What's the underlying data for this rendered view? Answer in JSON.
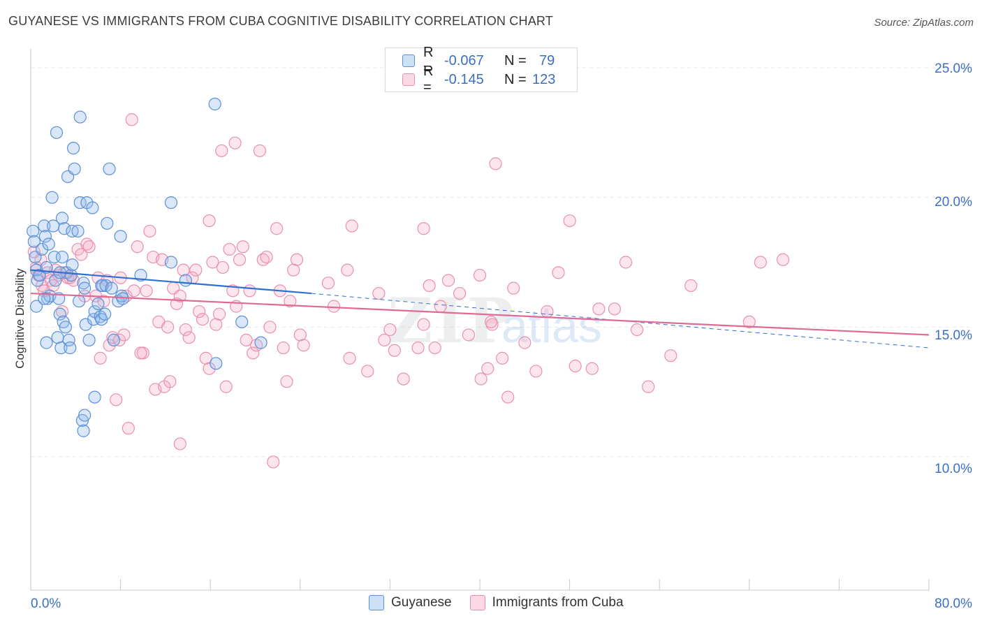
{
  "header": {
    "title": "GUYANESE VS IMMIGRANTS FROM CUBA COGNITIVE DISABILITY CORRELATION CHART",
    "source": "Source: ZipAtlas.com"
  },
  "legend": {
    "rows": [
      {
        "r_label": "R =",
        "r_value": "-0.067",
        "n_label": "N =",
        "n_value": "79"
      },
      {
        "r_label": "R =",
        "r_value": "-0.145",
        "n_label": "N =",
        "n_value": "123"
      }
    ]
  },
  "colors": {
    "blue_fill": "rgba(147,186,236,0.35)",
    "blue_stroke": "#5b8fd6",
    "blue_line": "#2f6fd0",
    "pink_fill": "rgba(244,170,196,0.30)",
    "pink_stroke": "#e890b0",
    "pink_line": "#e06a96",
    "tick_text": "#3a6fc4"
  },
  "chart_data": {
    "type": "scatter",
    "title": "GUYANESE VS IMMIGRANTS FROM CUBA COGNITIVE DISABILITY CORRELATION CHART",
    "xlabel": "",
    "ylabel": "Cognitive Disability",
    "xlim": [
      0,
      80
    ],
    "ylim": [
      5,
      25.9
    ],
    "x_tick_labels": [
      "0.0%",
      "80.0%"
    ],
    "y_ticks": [
      10,
      15,
      20,
      25
    ],
    "y_tick_labels": [
      "10.0%",
      "15.0%",
      "20.0%",
      "25.0%"
    ],
    "watermark": "ZIPatlas",
    "series": [
      {
        "name": "Guyanese",
        "r": -0.067,
        "n": 79,
        "trend": {
          "x0": 0,
          "y0": 17.2,
          "x1": 25,
          "y1": 16.3,
          "dash_to_x": 80,
          "dash_to_y": 14.2
        },
        "points": [
          [
            0.2,
            18.7
          ],
          [
            0.3,
            18.3
          ],
          [
            0.4,
            17.7
          ],
          [
            0.5,
            17.2
          ],
          [
            0.6,
            16.8
          ],
          [
            0.8,
            17.0
          ],
          [
            0.5,
            15.8
          ],
          [
            1.0,
            18.0
          ],
          [
            1.2,
            18.9
          ],
          [
            1.3,
            18.5
          ],
          [
            1.4,
            17.3
          ],
          [
            1.5,
            16.1
          ],
          [
            1.6,
            18.2
          ],
          [
            1.7,
            16.2
          ],
          [
            1.9,
            20.0
          ],
          [
            2.0,
            18.9
          ],
          [
            2.1,
            17.7
          ],
          [
            1.4,
            14.4
          ],
          [
            2.2,
            16.8
          ],
          [
            2.3,
            22.5
          ],
          [
            2.4,
            14.6
          ],
          [
            2.5,
            16.1
          ],
          [
            2.6,
            15.5
          ],
          [
            2.7,
            14.2
          ],
          [
            2.8,
            19.2
          ],
          [
            2.8,
            17.7
          ],
          [
            2.9,
            15.2
          ],
          [
            3.0,
            18.8
          ],
          [
            3.1,
            15.0
          ],
          [
            3.2,
            17.1
          ],
          [
            3.3,
            20.8
          ],
          [
            3.4,
            14.5
          ],
          [
            3.5,
            14.2
          ],
          [
            3.6,
            17.0
          ],
          [
            3.7,
            17.4
          ],
          [
            3.7,
            18.7
          ],
          [
            3.8,
            21.9
          ],
          [
            3.9,
            21.1
          ],
          [
            4.2,
            18.7
          ],
          [
            4.3,
            16.0
          ],
          [
            4.4,
            19.8
          ],
          [
            4.6,
            11.4
          ],
          [
            4.7,
            11.0
          ],
          [
            4.8,
            11.6
          ],
          [
            4.4,
            23.1
          ],
          [
            4.7,
            16.7
          ],
          [
            4.8,
            16.5
          ],
          [
            4.9,
            15.1
          ],
          [
            5.0,
            19.8
          ],
          [
            5.2,
            14.5
          ],
          [
            5.5,
            19.6
          ],
          [
            5.6,
            15.3
          ],
          [
            5.7,
            12.3
          ],
          [
            5.7,
            15.6
          ],
          [
            6.0,
            15.9
          ],
          [
            6.2,
            15.4
          ],
          [
            6.3,
            15.3
          ],
          [
            6.4,
            16.6
          ],
          [
            6.6,
            15.5
          ],
          [
            6.3,
            16.6
          ],
          [
            6.7,
            16.6
          ],
          [
            6.8,
            19.0
          ],
          [
            7.0,
            21.1
          ],
          [
            7.2,
            16.5
          ],
          [
            7.4,
            14.5
          ],
          [
            7.8,
            16.0
          ],
          [
            8.0,
            18.5
          ],
          [
            8.1,
            16.2
          ],
          [
            8.2,
            16.1
          ],
          [
            9.8,
            17.0
          ],
          [
            12.5,
            17.5
          ],
          [
            12.5,
            19.8
          ],
          [
            13.8,
            16.8
          ],
          [
            16.4,
            23.6
          ],
          [
            16.5,
            13.6
          ],
          [
            18.8,
            15.2
          ],
          [
            20.5,
            14.4
          ],
          [
            1.2,
            16.1
          ],
          [
            2.6,
            17.1
          ]
        ]
      },
      {
        "name": "Immigrants from Cuba",
        "r": -0.145,
        "n": 123,
        "trend": {
          "x0": 0,
          "y0": 16.3,
          "x1": 80,
          "y1": 14.7
        },
        "points": [
          [
            0.3,
            17.9
          ],
          [
            0.5,
            17.3
          ],
          [
            0.7,
            17.0
          ],
          [
            0.9,
            17.6
          ],
          [
            1.0,
            16.6
          ],
          [
            1.2,
            16.4
          ],
          [
            1.5,
            17.1
          ],
          [
            1.8,
            16.8
          ],
          [
            2.0,
            16.6
          ],
          [
            2.2,
            17.2
          ],
          [
            2.5,
            17.0
          ],
          [
            2.8,
            15.6
          ],
          [
            3.0,
            17.1
          ],
          [
            3.3,
            16.9
          ],
          [
            3.5,
            16.9
          ],
          [
            3.8,
            16.8
          ],
          [
            4.2,
            18.0
          ],
          [
            4.5,
            17.8
          ],
          [
            4.8,
            16.2
          ],
          [
            5.0,
            18.2
          ],
          [
            5.2,
            18.1
          ],
          [
            5.8,
            16.2
          ],
          [
            6.0,
            16.9
          ],
          [
            6.2,
            13.8
          ],
          [
            6.5,
            16.0
          ],
          [
            6.8,
            16.8
          ],
          [
            7.0,
            14.3
          ],
          [
            7.3,
            14.6
          ],
          [
            7.6,
            12.2
          ],
          [
            7.9,
            14.5
          ],
          [
            8.0,
            16.9
          ],
          [
            8.3,
            14.7
          ],
          [
            8.5,
            16.2
          ],
          [
            8.7,
            11.1
          ],
          [
            9.0,
            23.0
          ],
          [
            9.2,
            16.4
          ],
          [
            9.5,
            18.1
          ],
          [
            10.0,
            14.0
          ],
          [
            10.3,
            16.4
          ],
          [
            10.6,
            18.7
          ],
          [
            10.9,
            17.7
          ],
          [
            11.1,
            12.6
          ],
          [
            11.4,
            15.2
          ],
          [
            11.7,
            17.6
          ],
          [
            11.9,
            12.7
          ],
          [
            12.2,
            15.0
          ],
          [
            12.4,
            12.9
          ],
          [
            12.7,
            16.5
          ],
          [
            13.0,
            15.9
          ],
          [
            13.3,
            16.2
          ],
          [
            13.6,
            17.2
          ],
          [
            13.8,
            14.9
          ],
          [
            14.1,
            14.6
          ],
          [
            14.4,
            16.9
          ],
          [
            14.7,
            17.2
          ],
          [
            15.0,
            15.6
          ],
          [
            15.3,
            15.3
          ],
          [
            15.6,
            13.8
          ],
          [
            15.9,
            19.1
          ],
          [
            16.2,
            17.5
          ],
          [
            16.5,
            15.1
          ],
          [
            16.8,
            15.5
          ],
          [
            17.1,
            17.3
          ],
          [
            17.4,
            12.7
          ],
          [
            17.7,
            18.0
          ],
          [
            18.0,
            16.4
          ],
          [
            18.3,
            15.8
          ],
          [
            18.6,
            17.6
          ],
          [
            18.9,
            18.1
          ],
          [
            19.2,
            14.5
          ],
          [
            19.5,
            16.4
          ],
          [
            19.8,
            14.0
          ],
          [
            20.1,
            14.3
          ],
          [
            20.4,
            21.8
          ],
          [
            20.7,
            17.6
          ],
          [
            21.0,
            17.7
          ],
          [
            21.3,
            15.0
          ],
          [
            21.6,
            9.8
          ],
          [
            21.9,
            18.8
          ],
          [
            22.2,
            16.4
          ],
          [
            22.5,
            14.2
          ],
          [
            22.8,
            12.9
          ],
          [
            23.1,
            16.0
          ],
          [
            23.4,
            17.2
          ],
          [
            23.7,
            17.6
          ],
          [
            24.0,
            14.7
          ],
          [
            24.3,
            14.3
          ],
          [
            18.2,
            22.1
          ],
          [
            17.0,
            21.8
          ],
          [
            15.9,
            13.4
          ],
          [
            13.3,
            10.5
          ],
          [
            9.8,
            14.0
          ],
          [
            26.5,
            16.7
          ],
          [
            27.0,
            15.8
          ],
          [
            28.2,
            17.2
          ],
          [
            28.4,
            13.8
          ],
          [
            30.0,
            13.3
          ],
          [
            31.0,
            16.3
          ],
          [
            31.5,
            14.5
          ],
          [
            32.0,
            14.9
          ],
          [
            32.4,
            14.1
          ],
          [
            33.2,
            13.0
          ],
          [
            34.5,
            14.2
          ],
          [
            35.0,
            15.1
          ],
          [
            35.5,
            16.6
          ],
          [
            36.0,
            14.2
          ],
          [
            36.5,
            15.8
          ],
          [
            37.2,
            16.8
          ],
          [
            38.2,
            16.3
          ],
          [
            39.0,
            14.7
          ],
          [
            40.0,
            17.0
          ],
          [
            40.1,
            13.0
          ],
          [
            40.7,
            13.4
          ],
          [
            41.1,
            15.1
          ],
          [
            41.4,
            21.3
          ],
          [
            42.0,
            13.8
          ],
          [
            42.5,
            12.3
          ],
          [
            43.0,
            16.5
          ],
          [
            44.0,
            14.4
          ],
          [
            45.0,
            13.3
          ],
          [
            46.0,
            15.6
          ],
          [
            47.0,
            17.1
          ],
          [
            48.0,
            19.1
          ],
          [
            48.5,
            13.5
          ],
          [
            50.0,
            13.4
          ],
          [
            50.6,
            15.7
          ],
          [
            52.0,
            15.7
          ],
          [
            53.0,
            17.5
          ],
          [
            54.0,
            14.9
          ],
          [
            55.0,
            12.7
          ],
          [
            57.0,
            13.9
          ],
          [
            58.8,
            16.6
          ],
          [
            64.0,
            15.2
          ],
          [
            65.0,
            17.5
          ],
          [
            67.0,
            17.6
          ],
          [
            41.0,
            15.2
          ],
          [
            35.0,
            18.8
          ],
          [
            28.6,
            18.9
          ]
        ]
      }
    ]
  },
  "bottom_legend": {
    "items": [
      {
        "label": "Guyanese"
      },
      {
        "label": "Immigrants from Cuba"
      }
    ]
  }
}
